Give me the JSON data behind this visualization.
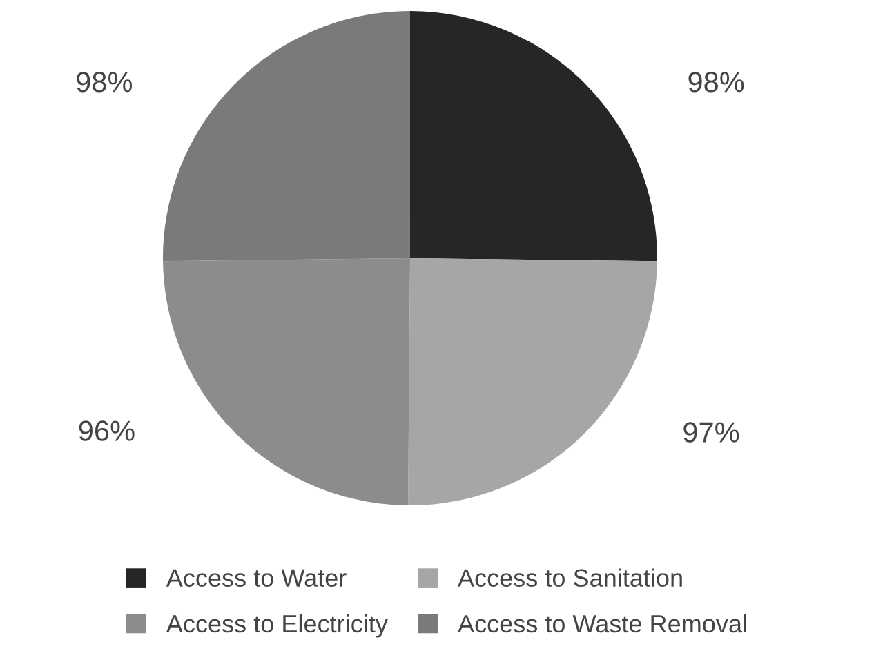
{
  "chart_data": {
    "type": "pie",
    "categories": [
      "Access to Water",
      "Access to Sanitation",
      "Access to Electricity",
      "Access to Waste Removal"
    ],
    "values": [
      98,
      97,
      96,
      98
    ],
    "colors": [
      "#262626",
      "#a6a6a6",
      "#8c8c8c",
      "#7a7a7a"
    ],
    "value_labels": [
      "98%",
      "97%",
      "96%",
      "98%"
    ],
    "legend": "bottom"
  }
}
